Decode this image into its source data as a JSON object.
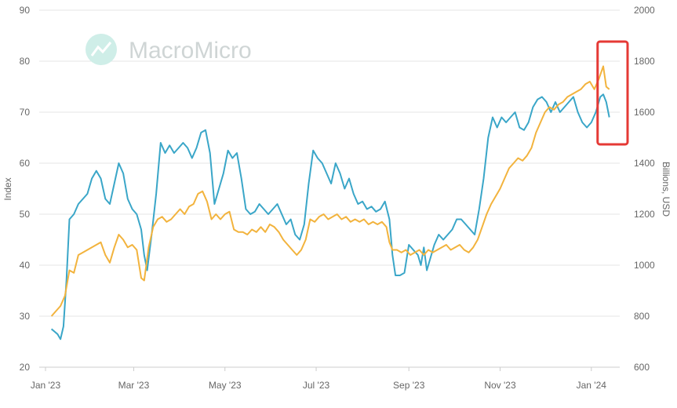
{
  "chart_data": {
    "type": "line",
    "watermark": "MacroMicro",
    "ylabel_left": "Index",
    "ylabel_right": "Billions, USD",
    "ylim_left": [
      20,
      90
    ],
    "ylim_right": [
      600,
      2000
    ],
    "yticks_left": [
      "20",
      "30",
      "40",
      "50",
      "60",
      "70",
      "80",
      "90"
    ],
    "yticks_right": [
      "600",
      "800",
      "1000",
      "1200",
      "1400",
      "1600",
      "1800",
      "2000"
    ],
    "xlim": [
      "2023-01-01",
      "2024-01-20"
    ],
    "xticks": [
      {
        "date": "2023-01-01",
        "label": "Jan '23"
      },
      {
        "date": "2023-03-01",
        "label": "Mar '23"
      },
      {
        "date": "2023-05-01",
        "label": "May '23"
      },
      {
        "date": "2023-07-01",
        "label": "Jul '23"
      },
      {
        "date": "2023-09-01",
        "label": "Sep '23"
      },
      {
        "date": "2023-11-01",
        "label": "Nov '23"
      },
      {
        "date": "2024-01-01",
        "label": "Jan '24"
      }
    ],
    "grid": true,
    "series": [
      {
        "axis": "left",
        "color": "#3aa6c8",
        "points": [
          [
            "2023-01-05",
            27.5
          ],
          [
            "2023-01-07",
            27
          ],
          [
            "2023-01-09",
            26.5
          ],
          [
            "2023-01-11",
            25.5
          ],
          [
            "2023-01-13",
            28
          ],
          [
            "2023-01-15",
            37
          ],
          [
            "2023-01-17",
            49
          ],
          [
            "2023-01-20",
            50
          ],
          [
            "2023-01-23",
            52
          ],
          [
            "2023-01-26",
            53
          ],
          [
            "2023-01-29",
            54
          ],
          [
            "2023-02-01",
            57
          ],
          [
            "2023-02-04",
            58.5
          ],
          [
            "2023-02-07",
            57
          ],
          [
            "2023-02-10",
            53
          ],
          [
            "2023-02-13",
            52
          ],
          [
            "2023-02-16",
            56
          ],
          [
            "2023-02-19",
            60
          ],
          [
            "2023-02-22",
            58
          ],
          [
            "2023-02-25",
            53
          ],
          [
            "2023-02-28",
            51
          ],
          [
            "2023-03-03",
            50
          ],
          [
            "2023-03-06",
            47
          ],
          [
            "2023-03-08",
            42
          ],
          [
            "2023-03-10",
            39
          ],
          [
            "2023-03-13",
            46
          ],
          [
            "2023-03-16",
            54
          ],
          [
            "2023-03-19",
            64
          ],
          [
            "2023-03-22",
            62
          ],
          [
            "2023-03-25",
            63.5
          ],
          [
            "2023-03-28",
            62
          ],
          [
            "2023-03-31",
            63
          ],
          [
            "2023-04-03",
            64
          ],
          [
            "2023-04-06",
            63
          ],
          [
            "2023-04-09",
            61
          ],
          [
            "2023-04-12",
            63
          ],
          [
            "2023-04-15",
            66
          ],
          [
            "2023-04-18",
            66.5
          ],
          [
            "2023-04-21",
            62
          ],
          [
            "2023-04-24",
            52
          ],
          [
            "2023-04-27",
            55
          ],
          [
            "2023-04-30",
            58
          ],
          [
            "2023-05-03",
            62.5
          ],
          [
            "2023-05-06",
            61
          ],
          [
            "2023-05-09",
            62
          ],
          [
            "2023-05-12",
            57
          ],
          [
            "2023-05-15",
            51
          ],
          [
            "2023-05-18",
            50
          ],
          [
            "2023-05-21",
            50.5
          ],
          [
            "2023-05-24",
            52
          ],
          [
            "2023-05-27",
            51
          ],
          [
            "2023-05-30",
            50
          ],
          [
            "2023-06-02",
            51
          ],
          [
            "2023-06-05",
            52
          ],
          [
            "2023-06-08",
            50
          ],
          [
            "2023-06-11",
            48
          ],
          [
            "2023-06-14",
            49
          ],
          [
            "2023-06-17",
            46
          ],
          [
            "2023-06-20",
            45
          ],
          [
            "2023-06-23",
            48
          ],
          [
            "2023-06-26",
            56
          ],
          [
            "2023-06-29",
            62.5
          ],
          [
            "2023-07-02",
            61
          ],
          [
            "2023-07-05",
            60
          ],
          [
            "2023-07-08",
            58
          ],
          [
            "2023-07-11",
            56
          ],
          [
            "2023-07-14",
            60
          ],
          [
            "2023-07-17",
            58
          ],
          [
            "2023-07-20",
            55
          ],
          [
            "2023-07-23",
            57
          ],
          [
            "2023-07-26",
            54
          ],
          [
            "2023-07-29",
            52
          ],
          [
            "2023-08-01",
            52.5
          ],
          [
            "2023-08-04",
            51
          ],
          [
            "2023-08-07",
            51.5
          ],
          [
            "2023-08-10",
            50.5
          ],
          [
            "2023-08-13",
            51
          ],
          [
            "2023-08-16",
            52.5
          ],
          [
            "2023-08-19",
            49
          ],
          [
            "2023-08-21",
            42
          ],
          [
            "2023-08-23",
            38
          ],
          [
            "2023-08-26",
            38
          ],
          [
            "2023-08-29",
            38.5
          ],
          [
            "2023-09-01",
            44
          ],
          [
            "2023-09-04",
            43
          ],
          [
            "2023-09-07",
            42
          ],
          [
            "2023-09-09",
            40
          ],
          [
            "2023-09-11",
            43.5
          ],
          [
            "2023-09-13",
            39
          ],
          [
            "2023-09-15",
            41
          ],
          [
            "2023-09-18",
            44
          ],
          [
            "2023-09-21",
            46
          ],
          [
            "2023-09-24",
            45
          ],
          [
            "2023-09-27",
            46
          ],
          [
            "2023-09-30",
            47
          ],
          [
            "2023-10-03",
            49
          ],
          [
            "2023-10-06",
            49
          ],
          [
            "2023-10-09",
            48
          ],
          [
            "2023-10-12",
            47
          ],
          [
            "2023-10-15",
            46
          ],
          [
            "2023-10-18",
            51
          ],
          [
            "2023-10-21",
            57
          ],
          [
            "2023-10-24",
            65
          ],
          [
            "2023-10-27",
            69
          ],
          [
            "2023-10-30",
            67
          ],
          [
            "2023-11-02",
            69
          ],
          [
            "2023-11-05",
            68
          ],
          [
            "2023-11-08",
            69
          ],
          [
            "2023-11-11",
            70
          ],
          [
            "2023-11-14",
            67
          ],
          [
            "2023-11-17",
            66.5
          ],
          [
            "2023-11-20",
            68
          ],
          [
            "2023-11-23",
            71
          ],
          [
            "2023-11-26",
            72.5
          ],
          [
            "2023-11-29",
            73
          ],
          [
            "2023-12-02",
            72
          ],
          [
            "2023-12-05",
            70
          ],
          [
            "2023-12-08",
            72
          ],
          [
            "2023-12-11",
            70
          ],
          [
            "2023-12-14",
            71
          ],
          [
            "2023-12-17",
            72
          ],
          [
            "2023-12-20",
            73
          ],
          [
            "2023-12-23",
            70
          ],
          [
            "2023-12-26",
            68
          ],
          [
            "2023-12-29",
            67
          ],
          [
            "2024-01-01",
            68
          ],
          [
            "2024-01-04",
            70
          ],
          [
            "2024-01-07",
            73
          ],
          [
            "2024-01-09",
            73.5
          ],
          [
            "2024-01-11",
            72
          ],
          [
            "2024-01-13",
            69
          ]
        ]
      },
      {
        "axis": "right",
        "color": "#f2b33d",
        "points": [
          [
            "2023-01-05",
            800
          ],
          [
            "2023-01-08",
            820
          ],
          [
            "2023-01-11",
            840
          ],
          [
            "2023-01-14",
            880
          ],
          [
            "2023-01-17",
            980
          ],
          [
            "2023-01-20",
            970
          ],
          [
            "2023-01-23",
            1040
          ],
          [
            "2023-01-26",
            1050
          ],
          [
            "2023-01-29",
            1060
          ],
          [
            "2023-02-01",
            1070
          ],
          [
            "2023-02-04",
            1080
          ],
          [
            "2023-02-07",
            1090
          ],
          [
            "2023-02-10",
            1040
          ],
          [
            "2023-02-13",
            1010
          ],
          [
            "2023-02-16",
            1070
          ],
          [
            "2023-02-19",
            1120
          ],
          [
            "2023-02-22",
            1100
          ],
          [
            "2023-02-25",
            1070
          ],
          [
            "2023-02-28",
            1080
          ],
          [
            "2023-03-03",
            1060
          ],
          [
            "2023-03-06",
            950
          ],
          [
            "2023-03-08",
            940
          ],
          [
            "2023-03-11",
            1070
          ],
          [
            "2023-03-14",
            1150
          ],
          [
            "2023-03-17",
            1180
          ],
          [
            "2023-03-20",
            1190
          ],
          [
            "2023-03-23",
            1170
          ],
          [
            "2023-03-26",
            1180
          ],
          [
            "2023-03-29",
            1200
          ],
          [
            "2023-04-01",
            1220
          ],
          [
            "2023-04-04",
            1200
          ],
          [
            "2023-04-07",
            1230
          ],
          [
            "2023-04-10",
            1240
          ],
          [
            "2023-04-13",
            1280
          ],
          [
            "2023-04-16",
            1290
          ],
          [
            "2023-04-19",
            1250
          ],
          [
            "2023-04-22",
            1180
          ],
          [
            "2023-04-25",
            1200
          ],
          [
            "2023-04-28",
            1180
          ],
          [
            "2023-05-01",
            1200
          ],
          [
            "2023-05-04",
            1210
          ],
          [
            "2023-05-07",
            1140
          ],
          [
            "2023-05-10",
            1130
          ],
          [
            "2023-05-13",
            1130
          ],
          [
            "2023-05-16",
            1120
          ],
          [
            "2023-05-19",
            1140
          ],
          [
            "2023-05-22",
            1130
          ],
          [
            "2023-05-25",
            1150
          ],
          [
            "2023-05-28",
            1130
          ],
          [
            "2023-05-31",
            1160
          ],
          [
            "2023-06-03",
            1150
          ],
          [
            "2023-06-06",
            1130
          ],
          [
            "2023-06-09",
            1100
          ],
          [
            "2023-06-12",
            1080
          ],
          [
            "2023-06-15",
            1060
          ],
          [
            "2023-06-18",
            1040
          ],
          [
            "2023-06-21",
            1060
          ],
          [
            "2023-06-24",
            1100
          ],
          [
            "2023-06-27",
            1180
          ],
          [
            "2023-06-30",
            1170
          ],
          [
            "2023-07-03",
            1190
          ],
          [
            "2023-07-06",
            1200
          ],
          [
            "2023-07-09",
            1180
          ],
          [
            "2023-07-12",
            1190
          ],
          [
            "2023-07-15",
            1200
          ],
          [
            "2023-07-18",
            1180
          ],
          [
            "2023-07-21",
            1190
          ],
          [
            "2023-07-24",
            1170
          ],
          [
            "2023-07-27",
            1180
          ],
          [
            "2023-07-30",
            1170
          ],
          [
            "2023-08-02",
            1180
          ],
          [
            "2023-08-05",
            1160
          ],
          [
            "2023-08-08",
            1170
          ],
          [
            "2023-08-11",
            1160
          ],
          [
            "2023-08-14",
            1170
          ],
          [
            "2023-08-17",
            1150
          ],
          [
            "2023-08-19",
            1090
          ],
          [
            "2023-08-21",
            1060
          ],
          [
            "2023-08-24",
            1060
          ],
          [
            "2023-08-27",
            1050
          ],
          [
            "2023-08-30",
            1060
          ],
          [
            "2023-09-02",
            1040
          ],
          [
            "2023-09-05",
            1050
          ],
          [
            "2023-09-08",
            1060
          ],
          [
            "2023-09-11",
            1040
          ],
          [
            "2023-09-14",
            1060
          ],
          [
            "2023-09-17",
            1050
          ],
          [
            "2023-09-20",
            1060
          ],
          [
            "2023-09-23",
            1070
          ],
          [
            "2023-09-26",
            1080
          ],
          [
            "2023-09-29",
            1060
          ],
          [
            "2023-10-02",
            1070
          ],
          [
            "2023-10-05",
            1080
          ],
          [
            "2023-10-08",
            1060
          ],
          [
            "2023-10-11",
            1050
          ],
          [
            "2023-10-14",
            1070
          ],
          [
            "2023-10-17",
            1100
          ],
          [
            "2023-10-20",
            1150
          ],
          [
            "2023-10-23",
            1200
          ],
          [
            "2023-10-26",
            1240
          ],
          [
            "2023-10-29",
            1270
          ],
          [
            "2023-11-01",
            1300
          ],
          [
            "2023-11-04",
            1340
          ],
          [
            "2023-11-07",
            1380
          ],
          [
            "2023-11-10",
            1400
          ],
          [
            "2023-11-13",
            1420
          ],
          [
            "2023-11-16",
            1410
          ],
          [
            "2023-11-19",
            1430
          ],
          [
            "2023-11-22",
            1460
          ],
          [
            "2023-11-25",
            1520
          ],
          [
            "2023-11-28",
            1560
          ],
          [
            "2023-12-01",
            1600
          ],
          [
            "2023-12-04",
            1620
          ],
          [
            "2023-12-07",
            1610
          ],
          [
            "2023-12-10",
            1630
          ],
          [
            "2023-12-13",
            1640
          ],
          [
            "2023-12-16",
            1660
          ],
          [
            "2023-12-19",
            1670
          ],
          [
            "2023-12-22",
            1680
          ],
          [
            "2023-12-25",
            1690
          ],
          [
            "2023-12-28",
            1710
          ],
          [
            "2023-12-31",
            1720
          ],
          [
            "2024-01-03",
            1690
          ],
          [
            "2024-01-06",
            1730
          ],
          [
            "2024-01-09",
            1780
          ],
          [
            "2024-01-11",
            1700
          ],
          [
            "2024-01-13",
            1690
          ]
        ]
      }
    ],
    "highlight_box": {
      "from": "2024-01-01",
      "to": "2024-01-20",
      "color": "#e53935"
    }
  }
}
